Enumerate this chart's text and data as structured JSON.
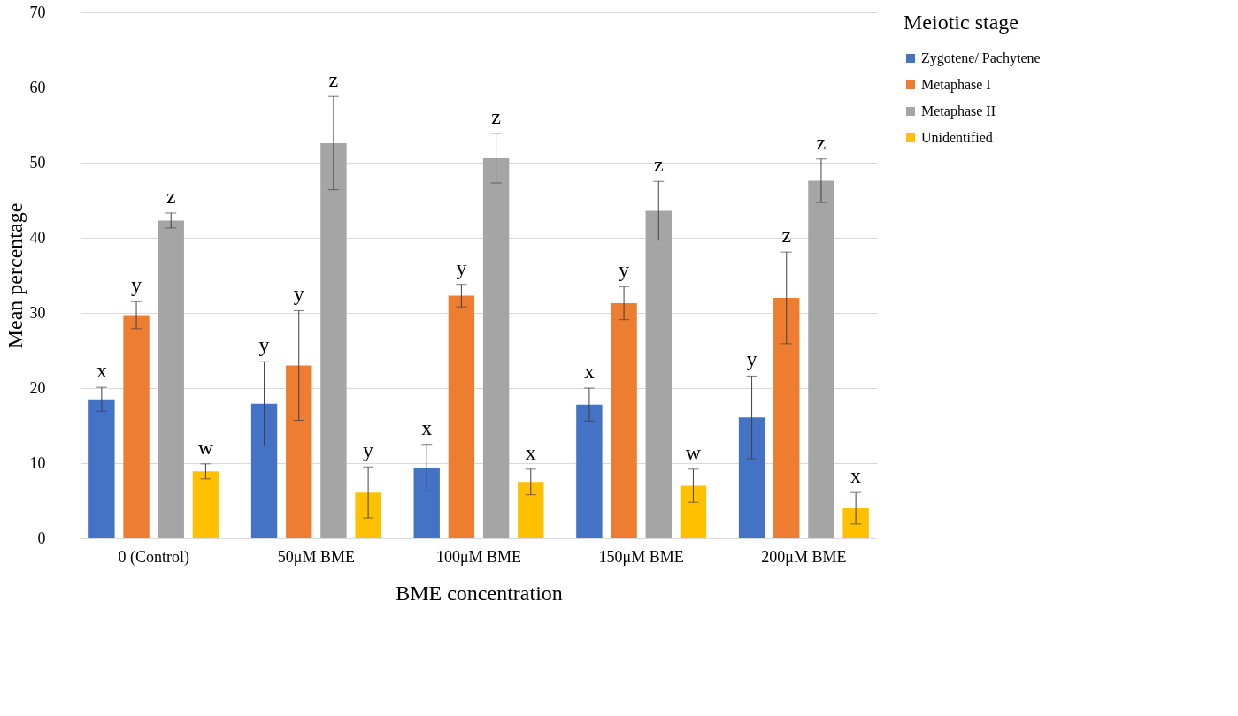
{
  "chart_data": {
    "type": "bar",
    "xlabel": "BME concentration",
    "ylabel": "Mean percentage",
    "legend_title": "Meiotic stage",
    "legend": "right",
    "grid": "y",
    "categories": [
      "0 (Control)",
      "50μM BME",
      "100μM BME",
      "150μM BME",
      "200μM BME"
    ],
    "ylim": [
      0,
      70
    ],
    "yticks": [
      0,
      10,
      20,
      30,
      40,
      50,
      60,
      70
    ],
    "series": [
      {
        "name": "Zygotene/ Pachytene",
        "color": "#4472c4",
        "values": [
          18.5,
          17.9,
          9.4,
          17.8,
          16.1
        ],
        "errors": [
          1.6,
          5.6,
          3.1,
          2.2,
          5.5
        ],
        "value_labels": [
          "x",
          "y",
          "x",
          "x",
          "y"
        ]
      },
      {
        "name": "Metaphase I",
        "color": "#ed7d31",
        "values": [
          29.7,
          23.0,
          32.3,
          31.3,
          32.0
        ],
        "errors": [
          1.8,
          7.3,
          1.5,
          2.2,
          6.1
        ],
        "value_labels": [
          "y",
          "y",
          "y",
          "y",
          "z"
        ]
      },
      {
        "name": "Metaphase II",
        "color": "#a5a5a5",
        "values": [
          42.3,
          52.6,
          50.6,
          43.6,
          47.6
        ],
        "errors": [
          1.0,
          6.2,
          3.3,
          3.9,
          2.9
        ],
        "value_labels": [
          "z",
          "z",
          "z",
          "z",
          "z"
        ]
      },
      {
        "name": "Unidentified",
        "color": "#ffc000",
        "values": [
          8.9,
          6.1,
          7.5,
          7.0,
          4.0
        ],
        "errors": [
          1.0,
          3.4,
          1.7,
          2.2,
          2.1
        ],
        "value_labels": [
          "w",
          "y",
          "x",
          "w",
          "x"
        ]
      }
    ]
  }
}
